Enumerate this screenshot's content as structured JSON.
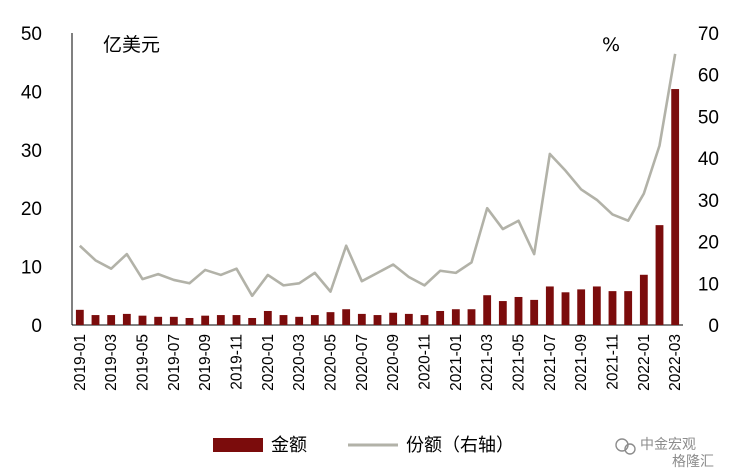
{
  "chart_data": {
    "type": "bar",
    "title": "",
    "left_unit": "亿美元",
    "right_unit": "%",
    "categories": [
      "2019-01",
      "2019-02",
      "2019-03",
      "2019-04",
      "2019-05",
      "2019-06",
      "2019-07",
      "2019-08",
      "2019-09",
      "2019-10",
      "2019-11",
      "2019-12",
      "2020-01",
      "2020-02",
      "2020-03",
      "2020-04",
      "2020-05",
      "2020-06",
      "2020-07",
      "2020-08",
      "2020-09",
      "2020-10",
      "2020-11",
      "2020-12",
      "2021-01",
      "2021-02",
      "2021-03",
      "2021-04",
      "2021-05",
      "2021-06",
      "2021-07",
      "2021-08",
      "2021-09",
      "2021-10",
      "2021-11",
      "2021-12",
      "2022-01",
      "2022-02",
      "2022-03"
    ],
    "x_tick_labels": [
      "2019-01",
      "2019-03",
      "2019-05",
      "2019-07",
      "2019-09",
      "2019-11",
      "2020-01",
      "2020-03",
      "2020-05",
      "2020-07",
      "2020-09",
      "2020-11",
      "2021-01",
      "2021-03",
      "2021-05",
      "2021-07",
      "2021-09",
      "2021-11",
      "2022-01",
      "2022-03"
    ],
    "y_left": {
      "min": 0,
      "max": 50,
      "ticks": [
        "0",
        "10",
        "20",
        "30",
        "40",
        "50"
      ]
    },
    "y_right": {
      "min": 0,
      "max": 70,
      "ticks": [
        "0",
        "10",
        "20",
        "30",
        "40",
        "50",
        "60",
        "70"
      ]
    },
    "series": [
      {
        "name": "金额",
        "type": "bar",
        "axis": "left",
        "color": "#7b0c0c",
        "values": [
          2.6,
          1.7,
          1.7,
          1.9,
          1.6,
          1.4,
          1.4,
          1.2,
          1.6,
          1.7,
          1.7,
          1.2,
          2.4,
          1.7,
          1.4,
          1.7,
          2.2,
          2.7,
          1.9,
          1.7,
          2.1,
          1.9,
          1.7,
          2.4,
          2.7,
          2.7,
          5.1,
          4.1,
          4.8,
          4.3,
          6.6,
          5.6,
          6.1,
          6.6,
          5.8,
          5.8,
          8.6,
          17.1,
          40.4
        ]
      },
      {
        "name": "份额（右轴）",
        "type": "line",
        "axis": "right",
        "color": "#b2b2a8",
        "values": [
          19,
          15.5,
          13.5,
          17,
          11,
          12.2,
          10.8,
          10,
          13.2,
          12,
          13.5,
          7,
          12,
          9.5,
          10,
          12.5,
          8,
          19,
          10.5,
          12.5,
          14.5,
          11.5,
          9.5,
          13,
          12.5,
          15,
          28,
          23,
          25,
          17,
          41,
          37,
          32.5,
          30,
          26.5,
          25,
          31.5,
          43,
          65
        ]
      }
    ]
  },
  "watermark": {
    "text": "中金宏观",
    "sub": "格隆汇"
  }
}
